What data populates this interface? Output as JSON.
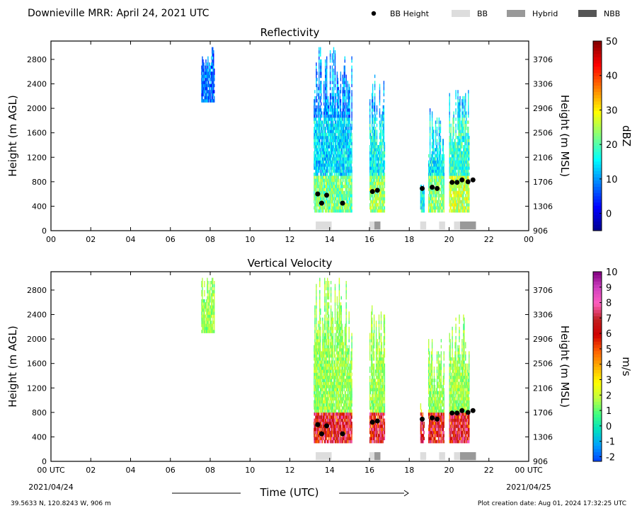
{
  "header": {
    "title": "Downieville MRR:  April 24, 2021 UTC",
    "legend": [
      {
        "label": "BB Height",
        "kind": "dot",
        "color": "#000000"
      },
      {
        "label": "BB",
        "kind": "box",
        "color": "#dddddd"
      },
      {
        "label": "Hybrid",
        "kind": "box",
        "color": "#999999"
      },
      {
        "label": "NBB",
        "kind": "box",
        "color": "#555555"
      }
    ]
  },
  "footer": {
    "location": "39.5633 N, 120.8243 W, 906 m",
    "creation": "Plot creation date: Aug 01, 2024 17:32:25 UTC",
    "xlabel": "Time (UTC)",
    "start_date": "2021/04/24",
    "end_date": "2021/04/25"
  },
  "chart_data": [
    {
      "type": "heatmap",
      "title": "Reflectivity",
      "ylabel": "Height (m AGL)",
      "y2label": "Height (m MSL)",
      "xlim": [
        0,
        24
      ],
      "ylim": [
        0,
        3100
      ],
      "x_ticks": [
        "00",
        "02",
        "04",
        "06",
        "08",
        "10",
        "12",
        "14",
        "16",
        "18",
        "20",
        "22",
        "00"
      ],
      "y_ticks": [
        0,
        400,
        800,
        1200,
        1600,
        2000,
        2400,
        2800
      ],
      "y2_ticks": [
        906,
        1306,
        1706,
        2106,
        2506,
        2906,
        3306,
        3706
      ],
      "colorbar": {
        "label": "dBZ",
        "ticks": [
          0,
          10,
          20,
          30,
          40,
          50
        ],
        "range": [
          -5,
          50
        ],
        "colors": [
          "#00008f",
          "#0000ff",
          "#0080ff",
          "#00ffff",
          "#80ff80",
          "#ffff00",
          "#ff8000",
          "#ff0000",
          "#800000"
        ]
      },
      "echo_periods": [
        {
          "start": 7.55,
          "end": 8.2,
          "top": 3000,
          "bottom": 2100,
          "intensity": 12
        },
        {
          "start": 13.2,
          "end": 15.1,
          "top": 3000,
          "bottom": 300,
          "intensity": 14
        },
        {
          "start": 16.0,
          "end": 16.75,
          "top": 2580,
          "bottom": 300,
          "intensity": 16
        },
        {
          "start": 18.55,
          "end": 18.75,
          "top": 930,
          "bottom": 300,
          "intensity": 8
        },
        {
          "start": 18.95,
          "end": 19.75,
          "top": 2020,
          "bottom": 300,
          "intensity": 15
        },
        {
          "start": 20.0,
          "end": 21.0,
          "top": 2480,
          "bottom": 300,
          "intensity": 18
        }
      ],
      "bb_height": [
        {
          "time": 13.4,
          "height": 600
        },
        {
          "time": 13.6,
          "height": 450
        },
        {
          "time": 13.85,
          "height": 580
        },
        {
          "time": 14.65,
          "height": 450
        },
        {
          "time": 16.15,
          "height": 640
        },
        {
          "time": 16.4,
          "height": 660
        },
        {
          "time": 18.65,
          "height": 690
        },
        {
          "time": 19.15,
          "height": 710
        },
        {
          "time": 19.4,
          "height": 690
        },
        {
          "time": 20.15,
          "height": 790
        },
        {
          "time": 20.4,
          "height": 790
        },
        {
          "time": 20.65,
          "height": 830
        },
        {
          "time": 20.95,
          "height": 800
        },
        {
          "time": 21.2,
          "height": 830
        }
      ],
      "bb_type": [
        {
          "start": 13.3,
          "end": 14.1,
          "type": "BB"
        },
        {
          "start": 16.0,
          "end": 16.25,
          "type": "BB"
        },
        {
          "start": 16.25,
          "end": 16.55,
          "type": "Hybrid"
        },
        {
          "start": 18.55,
          "end": 18.85,
          "type": "BB"
        },
        {
          "start": 19.5,
          "end": 19.8,
          "type": "BB"
        },
        {
          "start": 20.25,
          "end": 20.55,
          "type": "BB"
        },
        {
          "start": 20.55,
          "end": 21.35,
          "type": "Hybrid"
        }
      ]
    },
    {
      "type": "heatmap",
      "title": "Vertical Velocity",
      "ylabel": "Height (m AGL)",
      "y2label": "Height (m MSL)",
      "xlim": [
        0,
        24
      ],
      "ylim": [
        0,
        3100
      ],
      "x_ticks": [
        "00 UTC",
        "02",
        "04",
        "06",
        "08",
        "10",
        "12",
        "14",
        "16",
        "18",
        "20",
        "22",
        "00 UTC"
      ],
      "y_ticks": [
        0,
        400,
        800,
        1200,
        1600,
        2000,
        2400,
        2800
      ],
      "y2_ticks": [
        906,
        1306,
        1706,
        2106,
        2506,
        2906,
        3306,
        3706
      ],
      "colorbar": {
        "label": "m/s",
        "ticks": [
          -2,
          -1,
          0,
          1,
          2,
          3,
          4,
          5,
          6,
          7,
          8,
          9,
          10
        ],
        "range": [
          -2.3,
          10
        ],
        "colors": [
          "#0040ff",
          "#00a0ff",
          "#00e0c0",
          "#40ff80",
          "#c0ff40",
          "#ffff00",
          "#ffb000",
          "#ff6000",
          "#d00000",
          "#c02020",
          "#ff60c0",
          "#d040c0",
          "#800080"
        ]
      },
      "echo_periods": [
        {
          "start": 7.55,
          "end": 8.2,
          "top": 3000,
          "bottom": 2100,
          "intensity": 1.5
        },
        {
          "start": 13.2,
          "end": 15.1,
          "top": 3000,
          "bottom": 300,
          "intensity": 1.5
        },
        {
          "start": 16.0,
          "end": 16.75,
          "top": 2580,
          "bottom": 300,
          "intensity": 1.5
        },
        {
          "start": 18.55,
          "end": 18.75,
          "top": 930,
          "bottom": 300,
          "intensity": 2.0
        },
        {
          "start": 18.95,
          "end": 19.75,
          "top": 2020,
          "bottom": 300,
          "intensity": 1.5
        },
        {
          "start": 20.0,
          "end": 21.0,
          "top": 2480,
          "bottom": 300,
          "intensity": 1.5
        }
      ],
      "bb_height": [
        {
          "time": 13.4,
          "height": 600
        },
        {
          "time": 13.6,
          "height": 450
        },
        {
          "time": 13.85,
          "height": 580
        },
        {
          "time": 14.65,
          "height": 450
        },
        {
          "time": 16.15,
          "height": 640
        },
        {
          "time": 16.4,
          "height": 660
        },
        {
          "time": 18.65,
          "height": 690
        },
        {
          "time": 19.15,
          "height": 710
        },
        {
          "time": 19.4,
          "height": 690
        },
        {
          "time": 20.15,
          "height": 790
        },
        {
          "time": 20.4,
          "height": 790
        },
        {
          "time": 20.65,
          "height": 830
        },
        {
          "time": 20.95,
          "height": 800
        },
        {
          "time": 21.2,
          "height": 830
        }
      ],
      "bb_type": [
        {
          "start": 13.3,
          "end": 14.1,
          "type": "BB"
        },
        {
          "start": 16.0,
          "end": 16.25,
          "type": "BB"
        },
        {
          "start": 16.25,
          "end": 16.55,
          "type": "Hybrid"
        },
        {
          "start": 18.55,
          "end": 18.85,
          "type": "BB"
        },
        {
          "start": 19.5,
          "end": 19.8,
          "type": "BB"
        },
        {
          "start": 20.25,
          "end": 20.55,
          "type": "BB"
        },
        {
          "start": 20.55,
          "end": 21.35,
          "type": "Hybrid"
        }
      ]
    }
  ]
}
